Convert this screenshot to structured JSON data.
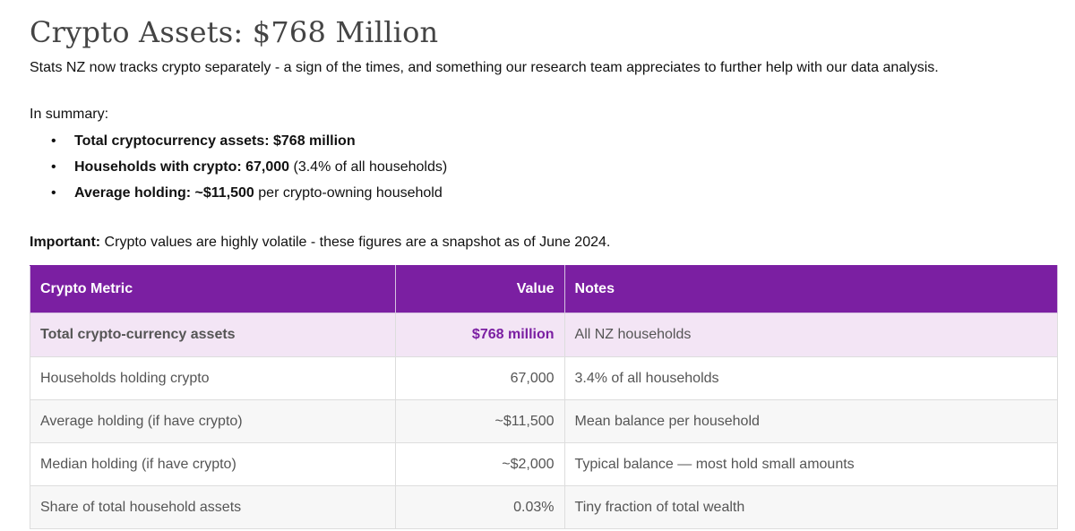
{
  "title": "Crypto Assets: $768 Million",
  "intro": "Stats NZ now tracks crypto separately - a sign of the times, and something our research team appreciates to further help with our data analysis.",
  "summary": {
    "heading": "In summary:",
    "items": [
      {
        "bold": "Total cryptocurrency assets: $768 million",
        "rest": ""
      },
      {
        "bold": "Households with crypto: 67,000",
        "rest": " (3.4% of all households)"
      },
      {
        "bold": "Average holding: ~$11,500",
        "rest": " per crypto-owning household"
      }
    ]
  },
  "important": {
    "label": "Important:",
    "text": " Crypto values are highly volatile - these figures are a snapshot as of June 2024."
  },
  "table": {
    "headers": [
      "Crypto Metric",
      "Value",
      "Notes"
    ],
    "rows": [
      {
        "metric": "Total crypto-currency assets",
        "value": "$768 million",
        "notes": "All NZ households"
      },
      {
        "metric": "Households holding crypto",
        "value": "67,000",
        "notes": "3.4% of all households"
      },
      {
        "metric": "Average holding (if have crypto)",
        "value": "~$11,500",
        "notes": "Mean balance per household"
      },
      {
        "metric": "Median holding (if have crypto)",
        "value": "~$2,000",
        "notes": "Typical balance — most hold small amounts"
      },
      {
        "metric": "Share of total household assets",
        "value": "0.03%",
        "notes": "Tiny fraction of total wealth"
      }
    ]
  },
  "colors": {
    "accent": "#7b1fa2",
    "highlight_bg": "#f3e5f5",
    "title": "#444444"
  }
}
